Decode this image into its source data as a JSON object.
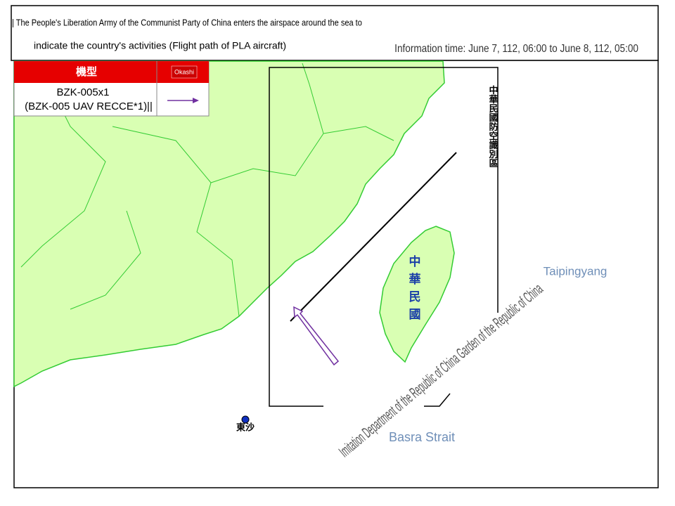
{
  "header": {
    "title_line1": "| The People's Liberation Army of the Communist Party of China enters the airspace around the sea to",
    "title_line2": "indicate the country's activities (Flight path of PLA aircraft)",
    "info_time": "Information time: June 7, 112, 06:00 to June 8, 112, 05:00"
  },
  "legend": {
    "header": "機型",
    "header_tag": "Okashi",
    "rows": [
      {
        "aircraft": "BZK-005x1",
        "detail": "(BZK-005 UAV RECCE*1)||"
      }
    ]
  },
  "map": {
    "adiz_label": "中華民國防空識別區",
    "taiwan_label": "中華民國",
    "pacific_label": "Taipingyang",
    "strait_label": "Basra Strait",
    "dongsha_label": "東沙",
    "watermark": "Imitation Department of the Republic of China Garden of the Republic of China"
  }
}
